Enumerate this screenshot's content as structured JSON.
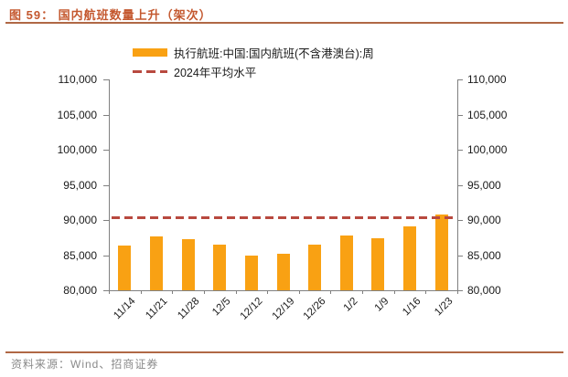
{
  "header": {
    "title": "图 59：  国内航班数量上升（架次）"
  },
  "colors": {
    "accent_title": "#C4582F",
    "rule": "#B06845",
    "bar": "#F9A113",
    "reference_line": "#B8493F",
    "axis": "#808080",
    "source_text": "#8A8A8A"
  },
  "chart_data": {
    "type": "bar",
    "categories": [
      "11/14",
      "11/21",
      "11/28",
      "12/5",
      "12/12",
      "12/19",
      "12/26",
      "1/2",
      "1/9",
      "1/16",
      "1/23"
    ],
    "values": [
      86400,
      87700,
      87300,
      86500,
      84900,
      85200,
      86500,
      87800,
      87400,
      89100,
      90800
    ],
    "series_name": "执行航班:中国:国内航班(不含港澳台):周",
    "reference_line": {
      "label": "2024年平均水平",
      "value": 90400
    },
    "title": "",
    "xlabel": "",
    "ylabel": "",
    "ylim": [
      80000,
      110000
    ],
    "ytick_step": 5000,
    "dual_y_axis": true,
    "grid": false,
    "legend_position": "top",
    "bar_color": "#F9A113",
    "ref_color": "#B8493F"
  },
  "footer": {
    "source": "资料来源：Wind、招商证券"
  }
}
